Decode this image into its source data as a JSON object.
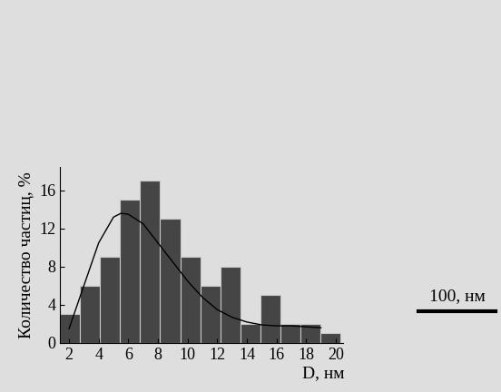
{
  "chart_data": {
    "type": "histogram",
    "x_label": "D, нм",
    "y_label": "Количество частиц, %",
    "bins": [
      1.4,
      2.75,
      4.1,
      5.45,
      6.8,
      8.15,
      9.5,
      10.85,
      12.2,
      13.55,
      14.9,
      16.25,
      17.6,
      18.95,
      20.3
    ],
    "counts": [
      3,
      6,
      9,
      15,
      17,
      13,
      9,
      6,
      8,
      2,
      5,
      2,
      2,
      1
    ],
    "color": "#454545",
    "series": [
      {
        "type": "line",
        "color": "#000000",
        "x": [
          2,
          3,
          4,
          5,
          5.5,
          6,
          7,
          8,
          9,
          10,
          11,
          12,
          13,
          14,
          15,
          16,
          17,
          18,
          19
        ],
        "values": [
          1.5,
          6,
          10.5,
          13.2,
          13.6,
          13.5,
          12.5,
          10.5,
          8.5,
          6.5,
          4.8,
          3.5,
          2.7,
          2.2,
          1.9,
          1.8,
          1.8,
          1.7,
          1.6
        ]
      }
    ],
    "xlim": [
      1.4,
      20.5
    ],
    "xticks": [
      2,
      4,
      6,
      8,
      10,
      12,
      14,
      16,
      18,
      20
    ],
    "ylim": [
      0,
      18.5
    ],
    "yticks": [
      0,
      4,
      8,
      12,
      16
    ],
    "grid": false,
    "annotations": [
      "100, нм"
    ]
  }
}
